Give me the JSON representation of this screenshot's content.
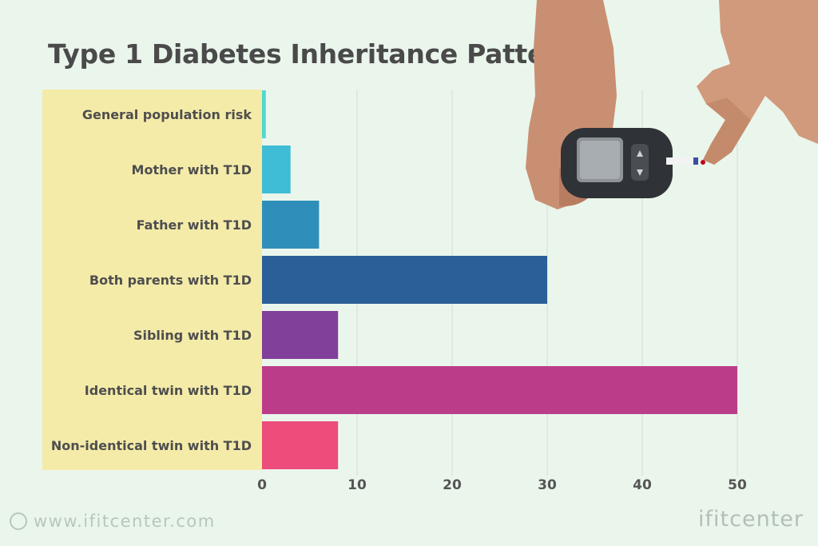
{
  "title": "Type 1 Diabetes Inheritance Patterns",
  "footer": {
    "url": "www.ifitcenter.com",
    "brand": "ifitcenter"
  },
  "photo": {
    "icon": "glucose-meter-hands-photo"
  },
  "chart_data": {
    "type": "bar",
    "orientation": "horizontal",
    "title": "Type 1 Diabetes Inheritance Patterns",
    "xlabel": "",
    "ylabel": "",
    "categories": [
      "General population risk",
      "Mother with T1D",
      "Father with T1D",
      "Both parents with T1D",
      "Sibling with T1D",
      "Identical twin with T1D",
      "Non-identical twin with T1D"
    ],
    "values": [
      0.4,
      3,
      6,
      30,
      8,
      50,
      8
    ],
    "colors": [
      "#4fd8d0",
      "#3fbcd6",
      "#2f8fba",
      "#2a5f98",
      "#814099",
      "#bb3d8a",
      "#ec4d7a"
    ],
    "xlim": [
      0,
      50
    ],
    "xticks": [
      0,
      10,
      20,
      30,
      40,
      50
    ],
    "grid": true
  }
}
